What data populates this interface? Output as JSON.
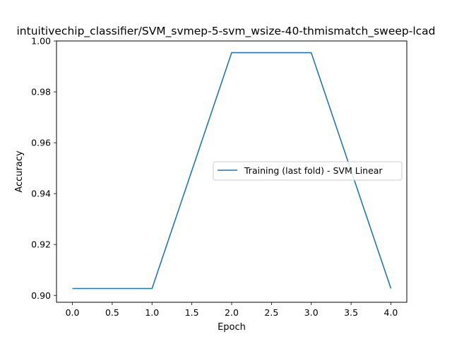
{
  "chart_data": {
    "type": "line",
    "title": "intuitivechip_classifier/SVM_svmep-5-svm_wsize-40-thmismatch_sweep-lcad",
    "xlabel": "Epoch",
    "ylabel": "Accuracy",
    "xlim": [
      -0.2,
      4.2
    ],
    "ylim": [
      0.8973,
      1.0
    ],
    "xticks": [
      0.0,
      0.5,
      1.0,
      1.5,
      2.0,
      2.5,
      3.0,
      3.5,
      4.0
    ],
    "xtick_labels": [
      "0.0",
      "0.5",
      "1.0",
      "1.5",
      "2.0",
      "2.5",
      "3.0",
      "3.5",
      "4.0"
    ],
    "yticks": [
      0.9,
      0.92,
      0.94,
      0.96,
      0.98,
      1.0
    ],
    "ytick_labels": [
      "0.90",
      "0.92",
      "0.94",
      "0.96",
      "0.98",
      "1.00"
    ],
    "grid": false,
    "legend_position": "center-right",
    "series": [
      {
        "name": "Training (last fold) - SVM Linear",
        "color": "#1f77b4",
        "x": [
          0,
          1,
          2,
          3,
          4
        ],
        "y": [
          0.9027,
          0.9027,
          0.9954,
          0.9954,
          0.9027
        ]
      }
    ]
  }
}
